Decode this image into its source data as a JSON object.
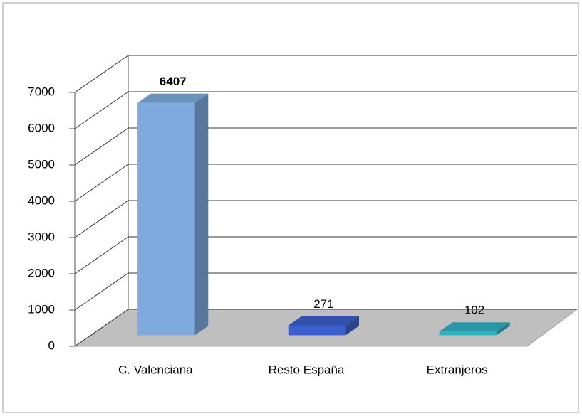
{
  "chart_data": {
    "type": "bar3d",
    "categories": [
      "C. Valenciana",
      "Resto España",
      "Extranjeros"
    ],
    "values": [
      6407,
      271,
      102
    ],
    "colors": [
      "#7eaadf",
      "#3b5fcc",
      "#2fb3c6"
    ],
    "ylim": [
      0,
      7000
    ],
    "yticks": [
      0,
      1000,
      2000,
      3000,
      4000,
      5000,
      6000,
      7000
    ],
    "grid": true
  }
}
